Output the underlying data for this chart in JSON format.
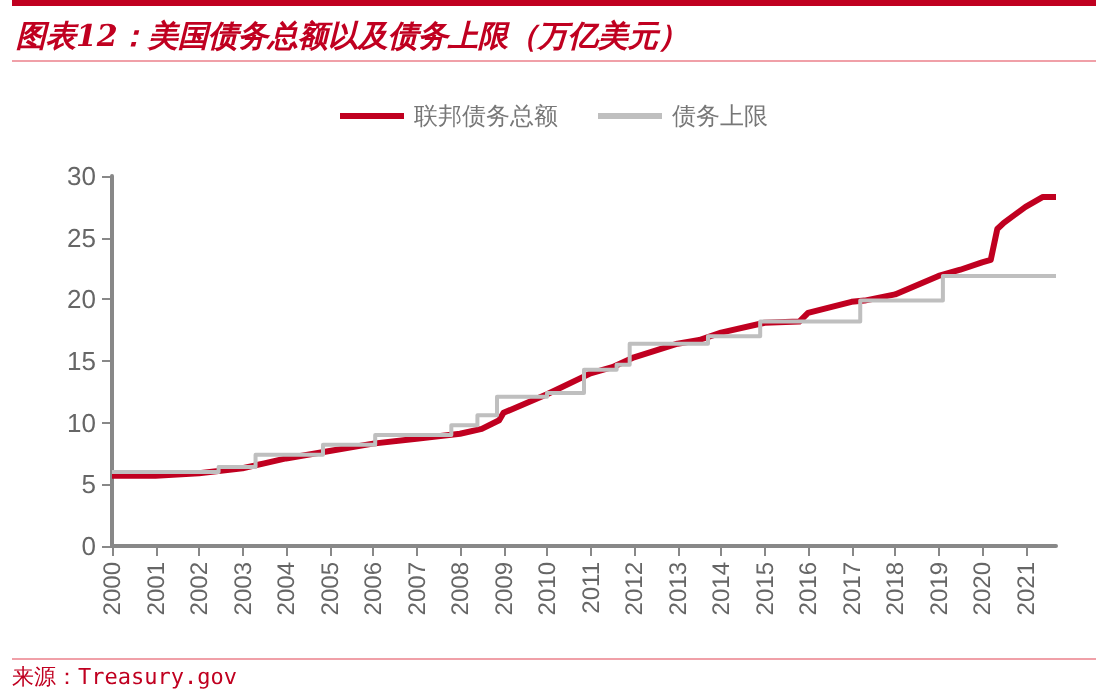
{
  "chart_data": {
    "type": "line",
    "title": "图表12：美国债务总额以及债务上限（万亿美元）",
    "annotations": [
      "来源：Treasury.gov"
    ],
    "xlim": [
      2000,
      2021.7
    ],
    "xticks": [
      2000,
      2001,
      2002,
      2003,
      2004,
      2005,
      2006,
      2007,
      2008,
      2009,
      2010,
      2011,
      2012,
      2013,
      2014,
      2015,
      2016,
      2017,
      2018,
      2019,
      2020,
      2021
    ],
    "ylim": [
      0,
      30
    ],
    "yticks": [
      0,
      5,
      10,
      15,
      20,
      25,
      30
    ],
    "grid": false,
    "legend": "top",
    "marker": "none",
    "series": [
      {
        "name": "联邦债务总额",
        "color": "#c00020",
        "x": [
          2000,
          2001,
          2002,
          2003,
          2003.5,
          2004,
          2005,
          2006,
          2007,
          2008,
          2008.5,
          2008.9,
          2009,
          2010,
          2011,
          2011.5,
          2012,
          2013,
          2013.5,
          2014,
          2015,
          2015.8,
          2016,
          2017,
          2017.3,
          2018,
          2019,
          2019.5,
          2020,
          2020.2,
          2020.35,
          2020.5,
          2021,
          2021.4,
          2021.7
        ],
        "values": [
          5.7,
          5.7,
          5.9,
          6.3,
          6.7,
          7.1,
          7.7,
          8.3,
          8.7,
          9.1,
          9.5,
          10.2,
          10.8,
          12.3,
          14.0,
          14.5,
          15.3,
          16.4,
          16.7,
          17.3,
          18.1,
          18.2,
          18.9,
          19.8,
          19.9,
          20.4,
          21.9,
          22.4,
          23.0,
          23.2,
          25.7,
          26.2,
          27.5,
          28.3,
          28.3
        ]
      },
      {
        "name": "债务上限",
        "type": "step",
        "color": "#bfbfbf",
        "x": [
          2000,
          2002.45,
          2003.3,
          2004.85,
          2006.05,
          2007.8,
          2008.4,
          2008.85,
          2010.0,
          2010.85,
          2011.6,
          2011.9,
          2013.7,
          2014.9,
          2017.2,
          2019.1,
          2021.7
        ],
        "values": [
          6.0,
          6.4,
          7.4,
          8.2,
          9.0,
          9.8,
          10.6,
          12.1,
          12.4,
          14.3,
          14.7,
          16.4,
          17.0,
          18.2,
          19.9,
          21.9,
          21.9
        ]
      }
    ]
  }
}
